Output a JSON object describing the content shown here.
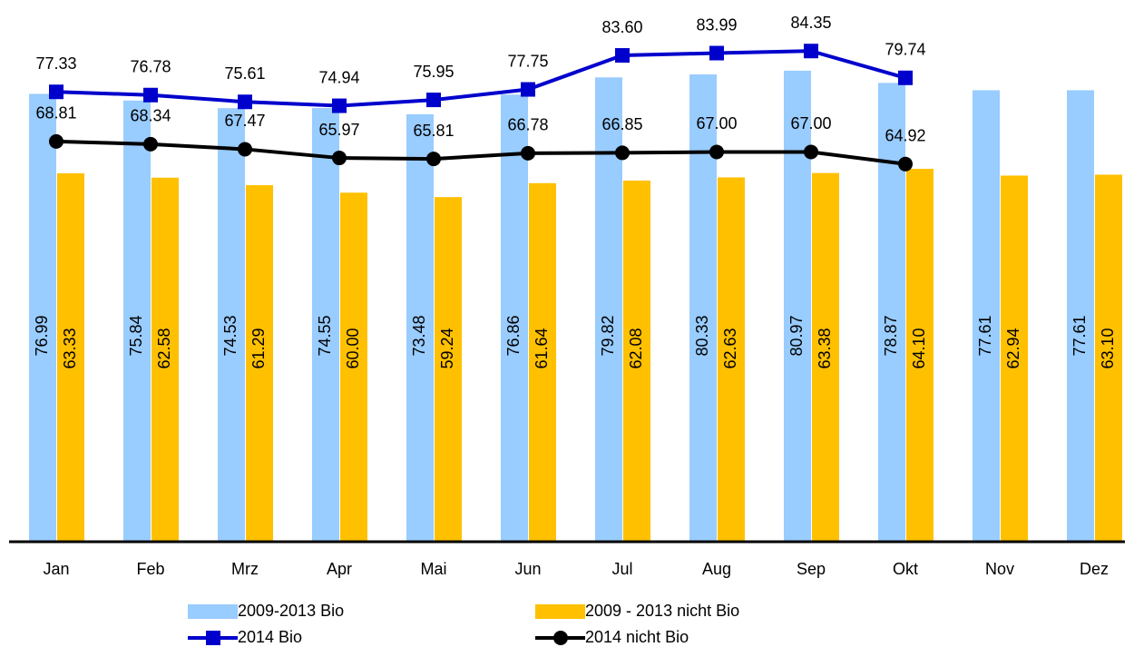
{
  "chart_data": {
    "type": "bar",
    "categories": [
      "Jan",
      "Feb",
      "Mrz",
      "Apr",
      "Mai",
      "Jun",
      "Jul",
      "Aug",
      "Sep",
      "Okt",
      "Nov",
      "Dez"
    ],
    "ylim": [
      0,
      90
    ],
    "series": [
      {
        "name": "2009-2013 Bio",
        "type": "bar",
        "color": "#99ccff",
        "values": [
          76.99,
          75.84,
          74.53,
          74.55,
          73.48,
          76.86,
          79.82,
          80.33,
          80.97,
          78.87,
          77.61,
          77.61
        ],
        "value_labels": [
          "76.99",
          "75.84",
          "74.53",
          "74.55",
          "73.48",
          "76.86",
          "79.82",
          "80.33",
          "80.97",
          "78.87",
          "77.61",
          "77.61"
        ]
      },
      {
        "name": "2009 - 2013 nicht Bio",
        "type": "bar",
        "color": "#ffc000",
        "values": [
          63.33,
          62.58,
          61.29,
          60,
          59.24,
          61.64,
          62.08,
          62.63,
          63.38,
          64.1,
          62.94,
          63.1
        ],
        "value_labels": [
          "63.33",
          "62.58",
          "61.29",
          "60.00",
          "59.24",
          "61.64",
          "62.08",
          "62.63",
          "63.38",
          "64.10",
          "62.94",
          "63.10"
        ]
      },
      {
        "name": "2014 Bio",
        "type": "line",
        "marker": "square",
        "color": "#0000cc",
        "values": [
          77.33,
          76.78,
          75.61,
          74.94,
          75.95,
          77.75,
          83.6,
          83.99,
          84.35,
          79.74,
          null,
          null
        ],
        "value_labels": [
          "77.33",
          "76.78",
          "75.61",
          "74.94",
          "75.95",
          "77.75",
          "83.60",
          "83.99",
          "84.35",
          "79.74",
          null,
          null
        ]
      },
      {
        "name": "2014 nicht Bio",
        "type": "line",
        "marker": "circle",
        "color": "#000000",
        "values": [
          68.81,
          68.34,
          67.47,
          65.97,
          65.81,
          66.78,
          66.85,
          67,
          67,
          64.92,
          null,
          null
        ],
        "value_labels": [
          "68.81",
          "68.34",
          "67.47",
          "65.97",
          "65.81",
          "66.78",
          "66.85",
          "67.00",
          "67.00",
          "64.92",
          null,
          null
        ]
      }
    ]
  }
}
